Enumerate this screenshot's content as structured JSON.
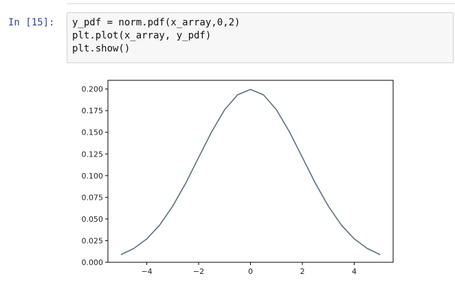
{
  "cell": {
    "prompt": "In [15]:",
    "code_lines": [
      "y_pdf = norm.pdf(x_array,0,2)",
      "plt.plot(x_array, y_pdf)",
      "plt.show()"
    ]
  },
  "colors": {
    "prompt": "#303f9f",
    "line": "#5a6e7e",
    "input_bg": "#f7f7f7"
  },
  "chart_data": {
    "type": "line",
    "title": "",
    "xlabel": "",
    "ylabel": "",
    "xlim": [
      -5.5,
      5.5
    ],
    "ylim": [
      0.0,
      0.21
    ],
    "grid": false,
    "legend": "none",
    "x_ticks": [
      -4,
      -2,
      0,
      2,
      4
    ],
    "x_tick_labels": [
      "−4",
      "−2",
      "0",
      "2",
      "4"
    ],
    "y_ticks": [
      0.0,
      0.025,
      0.05,
      0.075,
      0.1,
      0.125,
      0.15,
      0.175,
      0.2
    ],
    "y_tick_labels": [
      "0.000",
      "0.025",
      "0.050",
      "0.075",
      "0.100",
      "0.125",
      "0.150",
      "0.175",
      "0.200"
    ],
    "series": [
      {
        "x": [
          -5.0,
          -4.5,
          -4.0,
          -3.5,
          -3.0,
          -2.5,
          -2.0,
          -1.5,
          -1.0,
          -0.5,
          0.0,
          0.5,
          1.0,
          1.5,
          2.0,
          2.5,
          3.0,
          3.5,
          4.0,
          4.5,
          5.0
        ],
        "y": [
          0.0088,
          0.0159,
          0.027,
          0.0431,
          0.0648,
          0.0913,
          0.121,
          0.1506,
          0.176,
          0.1933,
          0.1995,
          0.1933,
          0.176,
          0.1506,
          0.121,
          0.0913,
          0.0648,
          0.0431,
          0.027,
          0.0159,
          0.0088
        ]
      }
    ]
  }
}
